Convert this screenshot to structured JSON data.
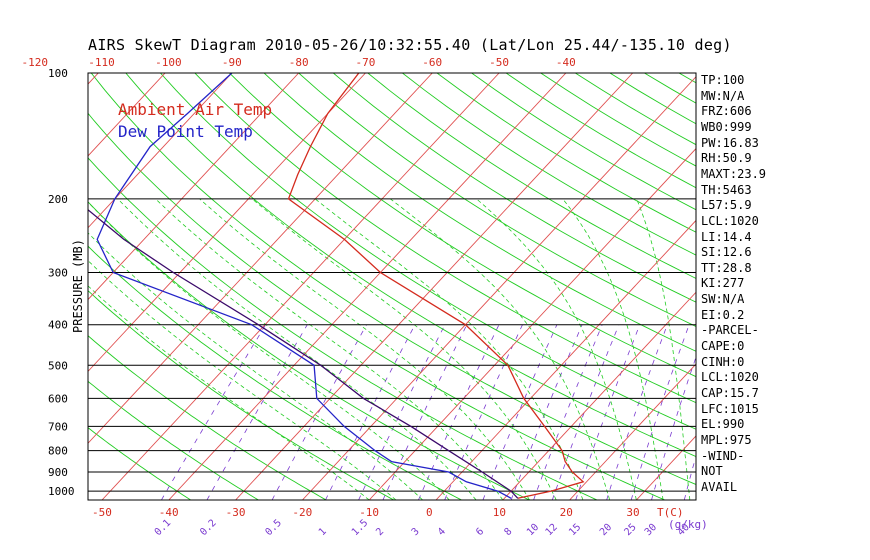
{
  "title": "AIRS SkewT Diagram 2010-05-26/10:32:55.40 (Lat/Lon 25.44/-135.10 deg)",
  "legend": {
    "temp": "Ambient Air Temp",
    "dew": "Dew Point Temp"
  },
  "colors": {
    "temp": "#d42b1e",
    "dew": "#2424c8",
    "parcel": "#3a0a6a",
    "isotherm": "#e05050",
    "dry_adiabat": "#22cc22",
    "moist_adiabat": "#22cc22",
    "mixing_ratio": "#7a3ad0",
    "isobar": "#000000"
  },
  "stats": [
    "TP:100",
    "MW:N/A",
    "FRZ:606",
    "WB0:999",
    "PW:16.83",
    "RH:50.9",
    "MAXT:23.9",
    "TH:5463",
    "L57:5.9",
    "LCL:1020",
    "LI:14.4",
    "SI:12.6",
    "TT:28.8",
    "KI:277",
    "SW:N/A",
    "EI:0.2",
    "-PARCEL-",
    "CAPE:0",
    "CINH:0",
    "LCL:1020",
    "CAP:15.7",
    "LFC:1015",
    "EL:990",
    "MPL:975",
    "-WIND-",
    "NOT",
    "AVAIL"
  ],
  "chart_data": {
    "type": "line",
    "title": "AIRS SkewT Diagram 2010-05-26/10:32:55.40 (Lat/Lon 25.44/-135.10 deg)",
    "ylabel": "PRESSURE (MB)",
    "y_scale": "log",
    "y_ticks": [
      100,
      200,
      300,
      400,
      500,
      600,
      700,
      800,
      900,
      1000
    ],
    "ylim": [
      1050,
      100
    ],
    "x_bottom_ticks": [
      -50,
      -40,
      -30,
      -20,
      -10,
      0,
      10,
      20,
      30
    ],
    "x_bottom_unit_label": "T(C)",
    "x_top_ticks": [
      -120,
      -110,
      -100,
      -90,
      -80,
      -70,
      -60,
      -50,
      -40
    ],
    "mixing_ratio_ticks": [
      "0.1",
      "0.2",
      "0.5",
      "1",
      "1.5",
      "2",
      "3",
      "4",
      "6",
      "8",
      "10",
      "12",
      "15",
      "20",
      "25",
      "30",
      "40"
    ],
    "mixing_ratio_unit_label": "(g/kg)",
    "grid": true,
    "legend_position": "top-left",
    "series": [
      {
        "name": "Ambient Air Temp",
        "color": "#d42b1e",
        "pressure": [
          1040,
          1000,
          950,
          900,
          850,
          800,
          700,
          600,
          500,
          400,
          300,
          250,
          200,
          175,
          150,
          125,
          100
        ],
        "temperature_c": [
          12,
          16,
          19.5,
          16.5,
          14,
          12,
          6,
          -1,
          -8,
          -20,
          -40,
          -50,
          -64,
          -66,
          -68,
          -70,
          -71
        ]
      },
      {
        "name": "Dew Point Temp",
        "color": "#2424c8",
        "pressure": [
          1040,
          1000,
          950,
          900,
          850,
          800,
          700,
          600,
          500,
          400,
          300,
          250,
          200,
          150,
          125,
          100
        ],
        "temperature_c": [
          11,
          8,
          2,
          -2,
          -12,
          -16,
          -24,
          -32,
          -37,
          -52,
          -80,
          -87,
          -90,
          -92,
          -91,
          -90
        ]
      },
      {
        "color": "#3a0a6a",
        "pressure": [
          1040,
          1000,
          900,
          800,
          700,
          600,
          500,
          400,
          300,
          250,
          200,
          150,
          100
        ],
        "temperature_c": [
          12,
          10,
          3,
          -5,
          -14,
          -25,
          -36,
          -51,
          -71,
          -83,
          -96,
          -116,
          -145
        ]
      }
    ]
  }
}
